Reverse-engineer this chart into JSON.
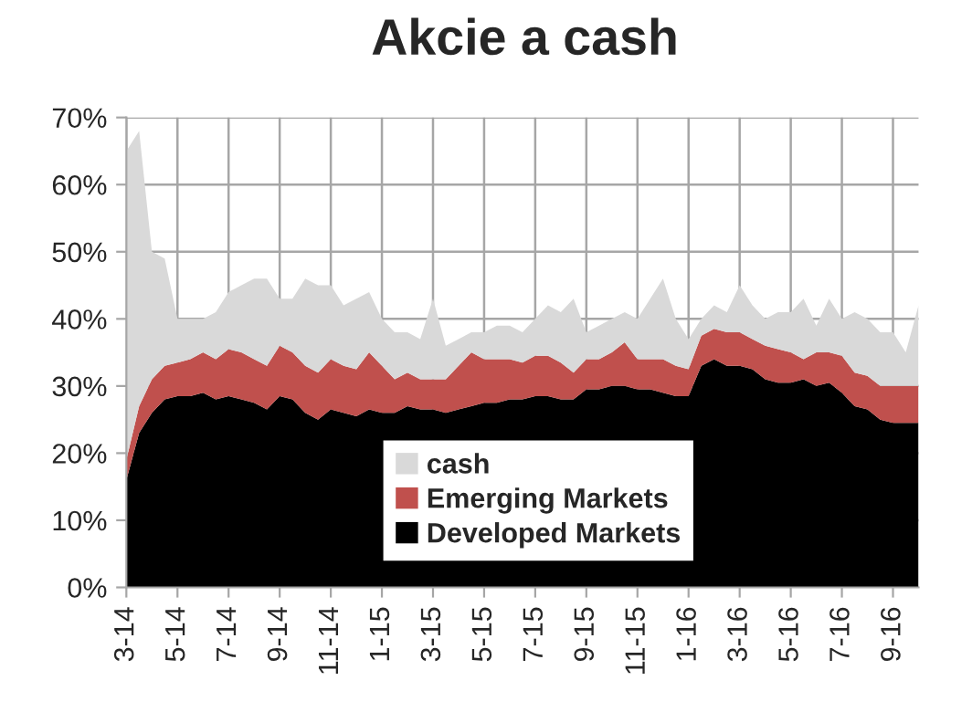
{
  "chart_data": {
    "type": "area",
    "stacked": true,
    "title": "Akcie a cash",
    "categories": [
      "3-14",
      null,
      null,
      null,
      "5-14",
      null,
      null,
      null,
      "7-14",
      null,
      null,
      null,
      "9-14",
      null,
      null,
      null,
      "11-14",
      null,
      null,
      null,
      "1-15",
      null,
      null,
      null,
      "3-15",
      null,
      null,
      null,
      "5-15",
      null,
      null,
      null,
      "7-15",
      null,
      null,
      null,
      "9-15",
      null,
      null,
      null,
      "11-15",
      null,
      null,
      null,
      "1-16",
      null,
      null,
      null,
      "3-16",
      null,
      null,
      null,
      "5-16",
      null,
      null,
      null,
      "7-16",
      null,
      null,
      null,
      "9-16",
      null,
      null
    ],
    "series": [
      {
        "name": "Developed Markets",
        "color": "#000000",
        "values": [
          16,
          23,
          26,
          28,
          28.5,
          28.5,
          29,
          28,
          28.5,
          28,
          27.5,
          26.5,
          28.5,
          28,
          26,
          25,
          26.5,
          26,
          25.5,
          26.5,
          26,
          26,
          27,
          26.5,
          26.5,
          26,
          26.5,
          27,
          27.5,
          27.5,
          28,
          28,
          28.5,
          28.5,
          28,
          28,
          29.5,
          29.5,
          30,
          30,
          29.5,
          29.5,
          29,
          28.5,
          28.5,
          33,
          34,
          33,
          33,
          32.5,
          31,
          30.5,
          30.5,
          31,
          30,
          30.5,
          29,
          27,
          26.5,
          25,
          24.5,
          24.5,
          24.5
        ]
      },
      {
        "name": "Emerging Markets",
        "color": "#c0504d",
        "values": [
          3,
          4,
          5,
          5,
          5,
          5.5,
          6,
          6,
          7,
          7,
          6.5,
          6.5,
          7.5,
          7,
          7,
          7,
          7.5,
          7,
          7,
          8.5,
          7,
          5,
          5,
          4.5,
          4.5,
          5,
          6.5,
          8,
          6.5,
          6.5,
          6,
          5.5,
          6,
          6,
          5.5,
          4,
          4.5,
          4.5,
          5,
          6.5,
          4.5,
          4.5,
          5,
          4.5,
          4,
          4.5,
          4.5,
          5,
          5,
          4.5,
          5,
          5,
          4.5,
          3,
          5,
          4.5,
          5.5,
          5,
          5,
          5,
          5.5,
          5.5,
          5.5
        ]
      },
      {
        "name": "cash",
        "color": "#d9d9d9",
        "values": [
          46,
          41,
          19,
          16,
          6.5,
          6,
          5,
          7,
          8.5,
          10,
          12,
          13,
          7,
          8,
          13,
          13,
          11,
          9,
          10.5,
          9,
          7,
          7,
          6,
          6,
          12,
          5,
          4,
          3,
          4,
          5,
          5,
          4.5,
          5.5,
          7.5,
          7.5,
          11,
          4,
          5,
          5,
          4.5,
          6,
          9,
          12,
          7,
          4.5,
          2.5,
          3.5,
          3,
          7,
          5,
          4,
          5.5,
          6,
          9,
          4,
          8,
          5.5,
          9,
          8.5,
          8,
          8,
          5,
          12
        ]
      }
    ],
    "ylim": [
      0,
      70
    ],
    "yticks": [
      {
        "value": 0,
        "label": "0%"
      },
      {
        "value": 10,
        "label": "10%"
      },
      {
        "value": 20,
        "label": "20%"
      },
      {
        "value": 30,
        "label": "30%"
      },
      {
        "value": 40,
        "label": "40%"
      },
      {
        "value": 50,
        "label": "50%"
      },
      {
        "value": 60,
        "label": "60%"
      },
      {
        "value": 70,
        "label": "70%"
      }
    ],
    "grid": true,
    "legend": "bottom"
  }
}
